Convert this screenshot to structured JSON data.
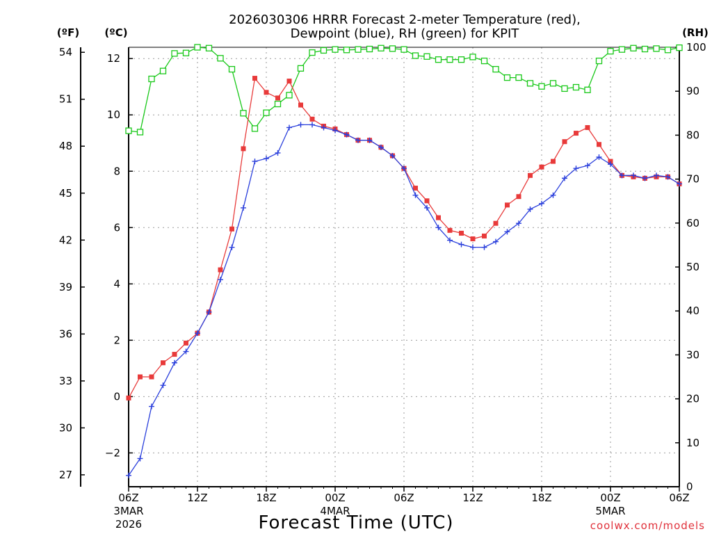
{
  "chart_data": {
    "type": "line",
    "title_line1": "2026030306 HRRR Forecast 2-meter Temperature (red),",
    "title_line2": "Dewpoint (blue), RH (green) for KPIT",
    "xlabel": "Forecast Time (UTC)",
    "credit": "coolwx.com/models",
    "unit_f": "(ºF)",
    "unit_c": "(ºC)",
    "unit_rh": "(RH)",
    "x_range_hours": [
      0,
      48
    ],
    "y_celsius_range": [
      -3.2,
      12.4
    ],
    "y_rh_range": [
      0,
      100
    ],
    "x_ticks": [
      {
        "h": 0,
        "label": "06Z",
        "sub1": "3MAR",
        "sub2": "2026"
      },
      {
        "h": 6,
        "label": "12Z"
      },
      {
        "h": 12,
        "label": "18Z"
      },
      {
        "h": 18,
        "label": "00Z",
        "sub1": "4MAR"
      },
      {
        "h": 24,
        "label": "06Z"
      },
      {
        "h": 30,
        "label": "12Z"
      },
      {
        "h": 36,
        "label": "18Z"
      },
      {
        "h": 42,
        "label": "00Z",
        "sub1": "5MAR"
      },
      {
        "h": 48,
        "label": "06Z"
      }
    ],
    "c_ticks": [
      {
        "v": -2,
        "label": "−2"
      },
      {
        "v": 0,
        "label": "0"
      },
      {
        "v": 2,
        "label": "2"
      },
      {
        "v": 4,
        "label": "4"
      },
      {
        "v": 6,
        "label": "6"
      },
      {
        "v": 8,
        "label": "8"
      },
      {
        "v": 10,
        "label": "10"
      },
      {
        "v": 12,
        "label": "12"
      }
    ],
    "f_ticks": [
      {
        "v": 27,
        "label": "27"
      },
      {
        "v": 30,
        "label": "30"
      },
      {
        "v": 33,
        "label": "33"
      },
      {
        "v": 36,
        "label": "36"
      },
      {
        "v": 39,
        "label": "39"
      },
      {
        "v": 42,
        "label": "42"
      },
      {
        "v": 45,
        "label": "45"
      },
      {
        "v": 48,
        "label": "48"
      },
      {
        "v": 51,
        "label": "51"
      },
      {
        "v": 54,
        "label": "54"
      }
    ],
    "rh_ticks": [
      {
        "v": 0,
        "label": "0"
      },
      {
        "v": 10,
        "label": "10"
      },
      {
        "v": 20,
        "label": "20"
      },
      {
        "v": 30,
        "label": "30"
      },
      {
        "v": 40,
        "label": "40"
      },
      {
        "v": 50,
        "label": "50"
      },
      {
        "v": 60,
        "label": "60"
      },
      {
        "v": 70,
        "label": "70"
      },
      {
        "v": 80,
        "label": "80"
      },
      {
        "v": 90,
        "label": "90"
      },
      {
        "v": 100,
        "label": "100"
      }
    ],
    "series": [
      {
        "name": "Temperature",
        "unit": "C",
        "color": "#e83a3a",
        "marker": "filled-square",
        "values": [
          -0.05,
          0.7,
          0.7,
          1.2,
          1.5,
          1.9,
          2.25,
          3.0,
          4.5,
          5.95,
          8.8,
          11.3,
          10.8,
          10.6,
          11.2,
          10.35,
          9.85,
          9.6,
          9.5,
          9.3,
          9.1,
          9.1,
          8.85,
          8.55,
          8.1,
          7.4,
          6.95,
          6.35,
          5.9,
          5.8,
          5.6,
          5.7,
          6.15,
          6.8,
          7.1,
          7.85,
          8.15,
          8.35,
          9.05,
          9.35,
          9.55,
          8.95,
          8.35,
          7.85,
          7.8,
          7.75,
          7.8,
          7.8,
          7.55
        ]
      },
      {
        "name": "Dewpoint",
        "unit": "C",
        "color": "#2a3fdc",
        "marker": "plus",
        "values": [
          -2.8,
          -2.2,
          -0.35,
          0.4,
          1.2,
          1.6,
          2.25,
          3.0,
          4.15,
          5.3,
          6.7,
          8.35,
          8.45,
          8.65,
          9.55,
          9.65,
          9.65,
          9.55,
          9.45,
          9.3,
          9.1,
          9.1,
          8.85,
          8.55,
          8.1,
          7.15,
          6.7,
          6.0,
          5.55,
          5.4,
          5.3,
          5.3,
          5.5,
          5.85,
          6.15,
          6.65,
          6.85,
          7.15,
          7.75,
          8.1,
          8.2,
          8.5,
          8.25,
          7.85,
          7.85,
          7.75,
          7.85,
          7.8,
          7.55
        ]
      },
      {
        "name": "RH",
        "unit": "%",
        "color": "#18c818",
        "marker": "open-square",
        "values": [
          81,
          80.7,
          92.8,
          94.6,
          98.6,
          98.7,
          100,
          99.8,
          97.5,
          95,
          85,
          81.5,
          85.1,
          87.1,
          89.1,
          95.2,
          98.8,
          99.3,
          99.5,
          99.4,
          99.5,
          99.6,
          99.8,
          99.7,
          99.5,
          98.1,
          97.9,
          97.2,
          97.2,
          97.2,
          97.8,
          96.9,
          95,
          93.1,
          93.1,
          91.8,
          91.1,
          91.8,
          90.6,
          90.9,
          90.3,
          96.9,
          99.1,
          99.5,
          99.8,
          99.6,
          99.7,
          99.4,
          99.9
        ]
      }
    ]
  }
}
